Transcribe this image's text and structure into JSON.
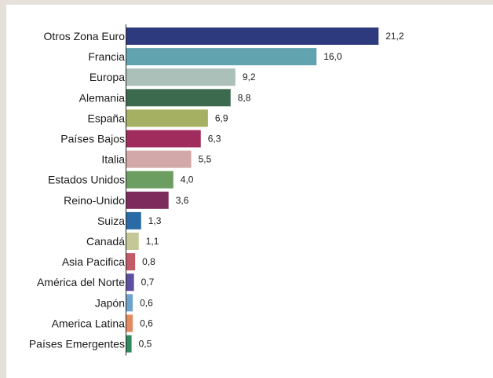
{
  "chart_data": {
    "type": "bar",
    "orientation": "horizontal",
    "title": "",
    "xlabel": "",
    "ylabel": "",
    "grid": false,
    "xlim": [
      0,
      22
    ],
    "categories": [
      "Otros Zona Euro",
      "Francia",
      "Europa",
      "Alemania",
      "España",
      "Países Bajos",
      "Italia",
      "Estados Unidos",
      "Reino-Unido",
      "Suiza",
      "Canadá",
      "Asia Pacifica",
      "América del Norte",
      "Japón",
      "America Latina",
      "Países Emergentes"
    ],
    "values": [
      21.2,
      16.0,
      9.2,
      8.8,
      6.9,
      6.3,
      5.5,
      4.0,
      3.6,
      1.3,
      1.1,
      0.8,
      0.7,
      0.6,
      0.6,
      0.5
    ],
    "value_labels": [
      "21,2",
      "16,0",
      "9,2",
      "8,8",
      "6,9",
      "6,3",
      "5,5",
      "4,0",
      "3,6",
      "1,3",
      "1,1",
      "0,8",
      "0,7",
      "0,6",
      "0,6",
      "0,5"
    ],
    "colors": [
      "#2e3a7e",
      "#62a3b0",
      "#aac0b8",
      "#3c6a4e",
      "#a6b062",
      "#a02c5e",
      "#d3a8a8",
      "#6d9e61",
      "#7c2b5c",
      "#2a6aa6",
      "#c5c797",
      "#c25a68",
      "#5f4fa3",
      "#6fa3cf",
      "#e38a61",
      "#2f8a5f"
    ]
  }
}
